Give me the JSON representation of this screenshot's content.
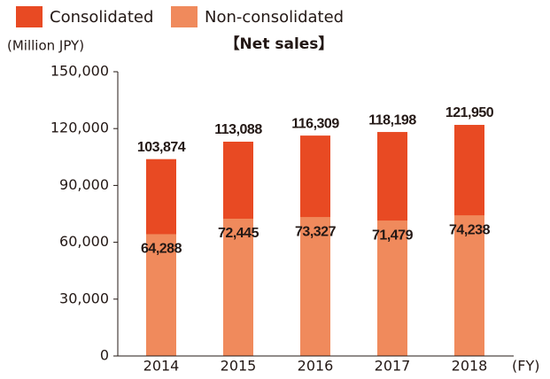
{
  "chart_data": {
    "type": "bar",
    "title": "【Net sales】",
    "y_label": "(Million JPY)",
    "x_label": "(FY)",
    "categories": [
      "2014",
      "2015",
      "2016",
      "2017",
      "2018"
    ],
    "series": [
      {
        "name": "Consolidated",
        "color": "#e84a23",
        "values": [
          103874,
          113088,
          116309,
          118198,
          121950
        ],
        "value_labels": [
          "103,874",
          "113,088",
          "116,309",
          "118,198",
          "121,950"
        ]
      },
      {
        "name": "Non-consolidated",
        "color": "#f08a5c",
        "values": [
          64288,
          72445,
          73327,
          71479,
          74238
        ],
        "value_labels": [
          "64,288",
          "72,445",
          "73,327",
          "71,479",
          "74,238"
        ]
      }
    ],
    "ylim": [
      0,
      150000
    ],
    "yticks": [
      0,
      {
        "value": 30000,
        "label": "30,000"
      },
      {
        "value": 60000,
        "label": "60,000"
      },
      {
        "value": 90000,
        "label": "90,000"
      },
      {
        "value": 120000,
        "label": "120,000"
      },
      {
        "value": 150000,
        "label": "150,000"
      }
    ],
    "legend": "top-left",
    "grid": false
  }
}
